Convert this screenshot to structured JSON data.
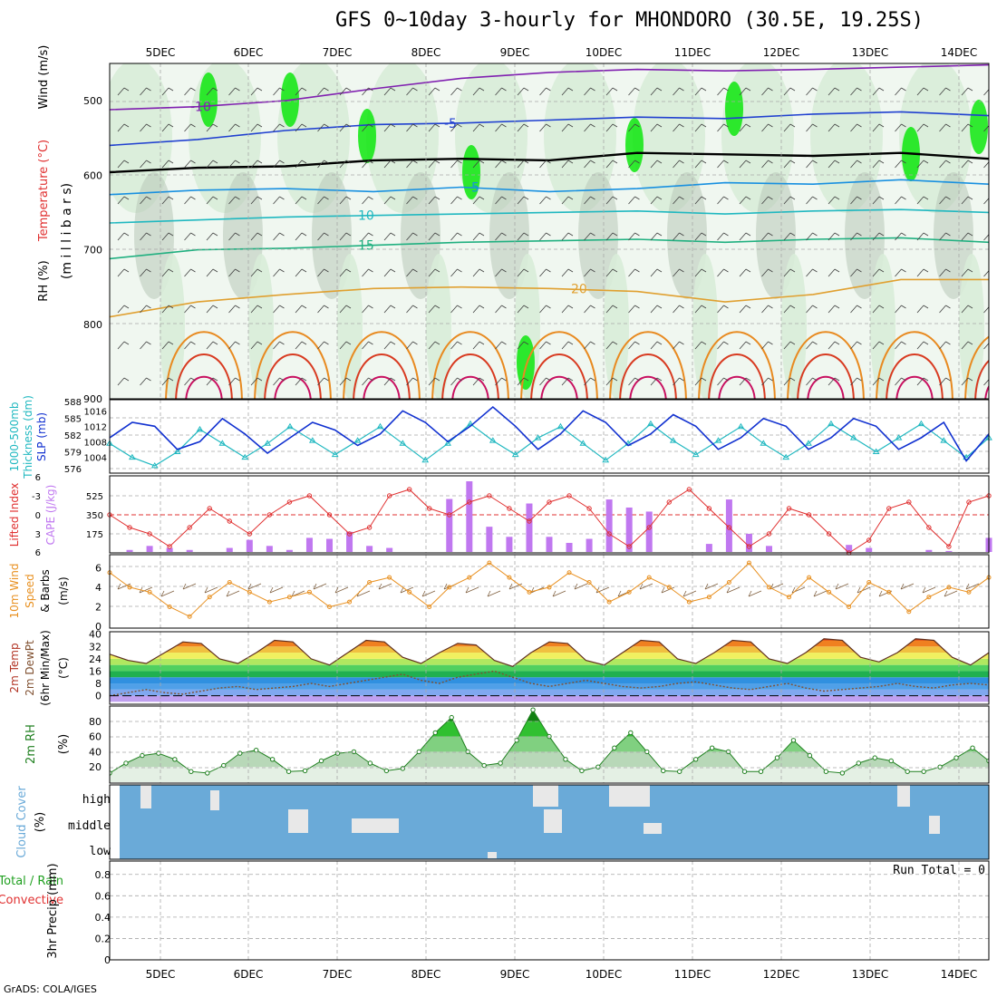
{
  "title": "GFS 0~10day 3-hourly for MHONDORO (30.5E, 19.25S)",
  "footer": "GrADS: COLA/IGES",
  "run_total": "Run Total = 0",
  "colors": {
    "rh_green": "#00e600",
    "rh_light": "#d8ecd8",
    "rh_gray": "#b8c8b8",
    "thickness": "#20b8c0",
    "slp": "#1030d0",
    "lifted": "#e03030",
    "cape": "#c078f0",
    "wind": "#e89020",
    "barb": "#404040",
    "cloud": "#6aaad8",
    "rh_line": "#208020"
  },
  "chart_data": [
    {
      "type": "area",
      "title": "Wind (m/s), Temperature (°C), RH (%)",
      "ylabel": "(millibars)",
      "axis_labels": [
        "Wind (m/s)",
        "Temperature (°C)",
        "RH (%)",
        "(m i l l i b a r s)"
      ],
      "x": [
        "5DEC",
        "6DEC",
        "7DEC",
        "8DEC",
        "9DEC",
        "10DEC",
        "11DEC",
        "12DEC",
        "13DEC",
        "14DEC"
      ],
      "yticks": [
        500,
        600,
        700,
        800,
        900
      ],
      "ylim": [
        450,
        900
      ],
      "temperature_isotherms": [
        {
          "label": "-10",
          "values": [
            512,
            508,
            500,
            484,
            470,
            462,
            458,
            460,
            458,
            455,
            452
          ]
        },
        {
          "label": "-5",
          "values": [
            560,
            552,
            540,
            532,
            530,
            526,
            522,
            524,
            518,
            515,
            520
          ]
        },
        {
          "label": "0",
          "values": [
            596,
            590,
            588,
            580,
            578,
            580,
            570,
            572,
            574,
            570,
            578
          ]
        },
        {
          "label": "5",
          "values": [
            626,
            620,
            618,
            622,
            616,
            622,
            618,
            610,
            612,
            606,
            612
          ]
        },
        {
          "label": "10",
          "values": [
            664,
            660,
            656,
            654,
            652,
            650,
            648,
            652,
            648,
            646,
            650
          ]
        },
        {
          "label": "15",
          "values": [
            712,
            700,
            698,
            694,
            690,
            688,
            686,
            690,
            686,
            684,
            690
          ]
        },
        {
          "label": "20",
          "values": [
            790,
            770,
            760,
            752,
            750,
            752,
            756,
            770,
            760,
            740,
            740
          ]
        }
      ],
      "contour_labels": [
        "-10",
        "-5",
        "0",
        "5",
        "10",
        "15",
        "20",
        "30"
      ]
    },
    {
      "type": "line",
      "title": "1000-500mb Thickness (dm), SLP (mb)",
      "axis_labels": [
        "1000-500mb",
        "Thickness (dm)",
        "SLP (mb)"
      ],
      "yticks_left": [
        576,
        579,
        582,
        585,
        588
      ],
      "yticks_right": [
        1004,
        1008,
        1012,
        1016
      ],
      "series": [
        {
          "name": "Thickness (dm)",
          "values": [
            580.5,
            578,
            576.5,
            579,
            583,
            580.5,
            578,
            580.5,
            583.5,
            581,
            578.5,
            581,
            583.5,
            580.5,
            577.5,
            580.5,
            584,
            581,
            578.5,
            581.5,
            583.5,
            580.5,
            577.5,
            580.5,
            584,
            581,
            578.5,
            581,
            583.5,
            580.5,
            578,
            580.5,
            584,
            581.5,
            579,
            581.5,
            584,
            581,
            578,
            581.5
          ]
        },
        {
          "name": "SLP (mb)",
          "values": [
            1009,
            1013,
            1012,
            1006,
            1008,
            1014,
            1010,
            1005,
            1009,
            1013,
            1011,
            1007,
            1010,
            1016,
            1013,
            1008,
            1012,
            1017,
            1012,
            1006,
            1010,
            1016,
            1013,
            1007,
            1010,
            1015,
            1012,
            1006,
            1009,
            1014,
            1012,
            1006,
            1009,
            1014,
            1012,
            1006,
            1009,
            1013,
            1003,
            1010
          ]
        }
      ]
    },
    {
      "type": "bar",
      "title": "Lifted Index, CAPE (J/kg)",
      "axis_labels": [
        "Lifted Index",
        "CAPE (J/kg)"
      ],
      "yticks_left": [
        "6",
        "-3",
        "0",
        "3",
        "6"
      ],
      "yticks_right": [
        175,
        350,
        525
      ],
      "cape_values": [
        0,
        20,
        60,
        40,
        20,
        0,
        40,
        120,
        60,
        20,
        140,
        130,
        200,
        60,
        40,
        0,
        0,
        525,
        700,
        250,
        150,
        480,
        150,
        90,
        130,
        520,
        440,
        400,
        0,
        0,
        80,
        520,
        180,
        60,
        0,
        0,
        0,
        70,
        40,
        0,
        0,
        20,
        10,
        0,
        140
      ],
      "lifted_index": [
        0,
        2,
        3,
        5,
        2,
        -1,
        1,
        3,
        0,
        -2,
        -3,
        0,
        3,
        2,
        -3,
        -4,
        -1,
        0,
        -2,
        -3,
        -1,
        1,
        -2,
        -3,
        -1,
        3,
        5,
        2,
        -2,
        -4,
        -1,
        2,
        5,
        3,
        -1,
        0,
        3,
        6,
        4,
        -1,
        -2,
        2,
        5,
        -2,
        -3
      ]
    },
    {
      "type": "line",
      "title": "10m Wind Speed & Barbs",
      "axis_labels": [
        "10m Wind",
        "Speed",
        "& Barbs",
        "(m/s)"
      ],
      "yticks": [
        0,
        2,
        4,
        6
      ],
      "series": [
        {
          "name": "Speed",
          "values": [
            5.5,
            4.0,
            3.5,
            2.0,
            1.0,
            3.0,
            4.5,
            3.5,
            2.5,
            3.0,
            3.5,
            2.0,
            2.5,
            4.5,
            5.0,
            3.5,
            2.0,
            4.0,
            5.0,
            6.5,
            5.0,
            3.5,
            4.0,
            5.5,
            4.5,
            2.5,
            3.5,
            5.0,
            4.0,
            2.5,
            3.0,
            4.5,
            6.5,
            4.0,
            3.0,
            5.0,
            3.5,
            2.0,
            4.5,
            3.5,
            1.5,
            3.0,
            4.0,
            3.5,
            5.0
          ]
        }
      ]
    },
    {
      "type": "line",
      "title": "2m Temp, 2m DewPt (6hr Min/Max)",
      "axis_labels": [
        "2m Temp",
        "2m DewPt",
        "(6hr Min/Max)",
        "(°C)"
      ],
      "yticks": [
        0,
        8,
        16,
        24,
        32,
        40
      ],
      "series": [
        {
          "name": "2m Temp",
          "values": [
            27,
            23,
            21,
            28,
            35,
            34,
            24,
            21,
            28,
            36,
            35,
            24,
            20,
            28,
            36,
            35,
            25,
            21,
            28,
            34,
            33,
            23,
            19,
            28,
            35,
            34,
            23,
            20,
            28,
            36,
            35,
            24,
            21,
            28,
            36,
            35,
            24,
            21,
            28,
            37,
            36,
            25,
            22,
            28,
            37,
            36,
            25,
            20,
            28
          ]
        },
        {
          "name": "2m DewPt",
          "values": [
            0,
            2,
            4,
            2,
            1,
            3,
            5,
            6,
            4,
            5,
            6,
            8,
            6,
            8,
            10,
            12,
            14,
            10,
            8,
            12,
            14,
            16,
            12,
            8,
            6,
            8,
            10,
            8,
            6,
            5,
            6,
            8,
            9,
            7,
            5,
            4,
            6,
            8,
            5,
            3,
            4,
            5,
            6,
            8,
            6,
            5,
            7,
            8,
            7
          ]
        }
      ]
    },
    {
      "type": "area",
      "title": "2m RH (%)",
      "axis_labels": [
        "2m RH",
        "(%)"
      ],
      "yticks": [
        20,
        40,
        60,
        80
      ],
      "values": [
        12,
        25,
        35,
        38,
        30,
        14,
        12,
        22,
        38,
        42,
        30,
        14,
        15,
        28,
        38,
        40,
        25,
        15,
        18,
        40,
        65,
        85,
        40,
        22,
        25,
        55,
        95,
        60,
        30,
        15,
        20,
        45,
        65,
        40,
        15,
        14,
        30,
        45,
        40,
        14,
        14,
        32,
        55,
        35,
        14,
        12,
        25,
        32,
        28,
        14,
        14,
        20,
        32,
        45,
        28
      ]
    },
    {
      "type": "bar",
      "title": "Cloud Cover (%)",
      "axis_labels": [
        "Cloud Cover",
        "(%)"
      ],
      "ytick_labels": [
        "high",
        "middle",
        "low"
      ],
      "categories": [
        "high",
        "middle",
        "low"
      ]
    },
    {
      "type": "bar",
      "title": "3hr Precip (mm)",
      "axis_labels": [
        "Total / Rain",
        "Convective",
        "3hr Precip (mm)"
      ],
      "yticks": [
        0,
        0.2,
        0.4,
        0.6,
        0.8
      ],
      "values": [
        0
      ]
    }
  ]
}
